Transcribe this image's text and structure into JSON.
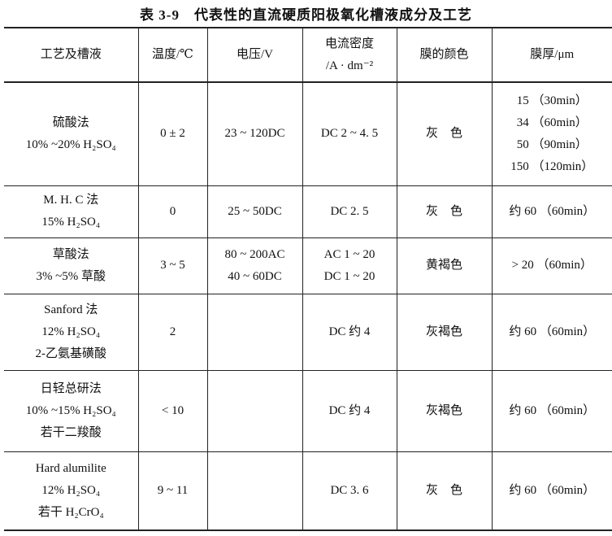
{
  "title": "表 3-9　代表性的直流硬质阳极氧化槽液成分及工艺",
  "headers": [
    "工艺及槽液",
    "温度/℃",
    "电压/V",
    "电流密度",
    "/A · dm⁻²",
    "膜的颜色",
    "膜厚/μm"
  ],
  "rows": [
    {
      "process": [
        "硫酸法",
        "10% ~20% H₂SO₄"
      ],
      "temp": "0 ± 2",
      "voltage": [
        "23 ~ 120DC"
      ],
      "current": [
        "DC 2 ~ 4. 5"
      ],
      "color": "灰　色",
      "thickness": [
        "15 （30min）",
        "34 （60min）",
        "50 （90min）",
        "150 （120min）"
      ]
    },
    {
      "process": [
        "M. H. C 法",
        "15%  H₂SO₄"
      ],
      "temp": "0",
      "voltage": [
        "25 ~ 50DC"
      ],
      "current": [
        "DC 2. 5"
      ],
      "color": "灰　色",
      "thickness": [
        "约 60 （60min）"
      ]
    },
    {
      "process": [
        "草酸法",
        "3% ~5% 草酸"
      ],
      "temp": "3 ~ 5",
      "voltage": [
        "80 ~ 200AC",
        "40 ~ 60DC"
      ],
      "current": [
        "AC 1 ~ 20",
        "DC 1 ~ 20"
      ],
      "color": "黄褐色",
      "thickness": [
        "> 20 （60min）"
      ]
    },
    {
      "process": [
        "Sanford 法",
        "12%  H₂SO₄",
        "2-乙氨基磺酸"
      ],
      "temp": "2",
      "voltage": [],
      "current": [
        "DC 约 4"
      ],
      "color": "灰褐色",
      "thickness": [
        "约 60 （60min）"
      ]
    },
    {
      "process": [
        "日轻总研法",
        "10% ~15%  H₂SO₄",
        "若干二羧酸"
      ],
      "temp": "< 10",
      "voltage": [],
      "current": [
        "DC 约 4"
      ],
      "color": "灰褐色",
      "thickness": [
        "约 60 （60min）"
      ]
    },
    {
      "process": [
        "Hard alumilite",
        "12%  H₂SO₄",
        "若干 H₂CrO₄"
      ],
      "temp": "9 ~ 11",
      "voltage": [],
      "current": [
        "DC 3. 6"
      ],
      "color": "灰　色",
      "thickness": [
        "约 60 （60min）"
      ]
    }
  ]
}
